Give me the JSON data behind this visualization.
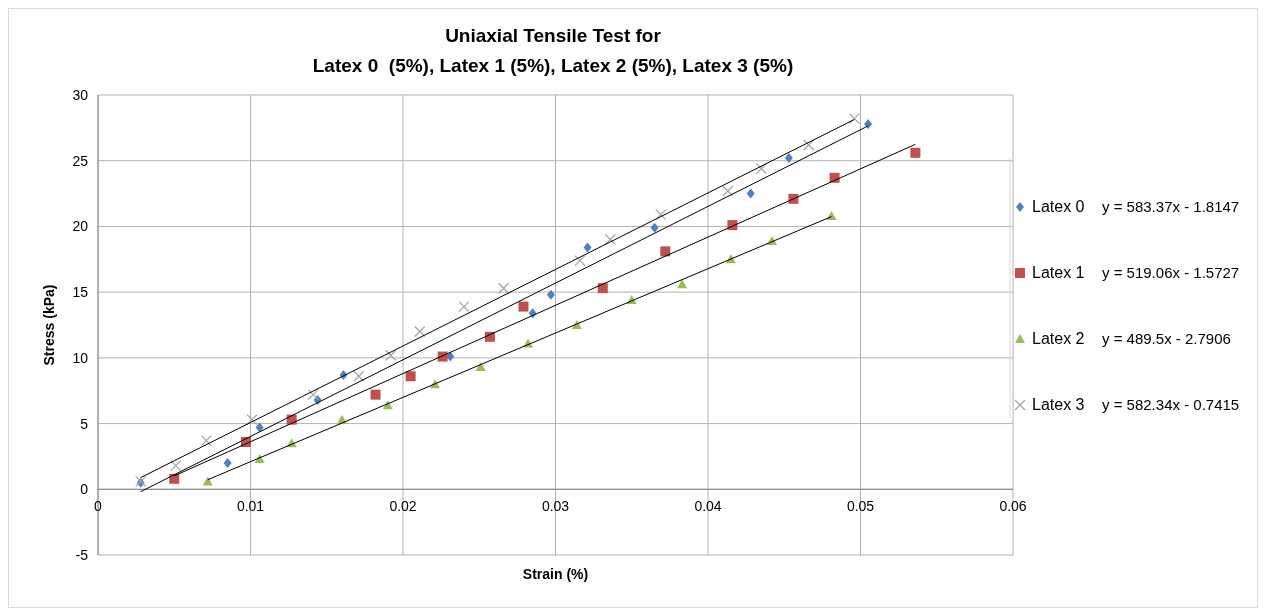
{
  "chart_data": {
    "type": "scatter",
    "title": "Uniaxial Tensile Test for\nLatex 0  (5%), Latex 1 (5%), Latex 2 (5%), Latex 3 (5%)",
    "xlabel": "Strain (%)",
    "ylabel": "Stress (kPa)",
    "xlim": [
      0,
      0.06
    ],
    "xticks": [
      0,
      0.01,
      0.02,
      0.03,
      0.04,
      0.05,
      0.06
    ],
    "ylim": [
      -5,
      30
    ],
    "yticks": [
      -5,
      0,
      5,
      10,
      15,
      20,
      25,
      30
    ],
    "grid": true,
    "legend": "right",
    "annotations": [
      "y = 583.37x - 1.8147",
      "y = 519.06x - 1.5727",
      "y = 489.5x - 2.7906",
      "y = 582.34x - 0.7415"
    ],
    "series": [
      {
        "name": "Latex 0",
        "color": "#4f81bd",
        "marker": "diamond",
        "x": [
          0.0028,
          0.0085,
          0.0106,
          0.0144,
          0.0161,
          0.0231,
          0.0285,
          0.0297,
          0.0321,
          0.0365,
          0.0428,
          0.0453,
          0.0505
        ],
        "values": [
          0.5,
          2.0,
          4.7,
          6.8,
          8.7,
          10.1,
          13.4,
          14.8,
          18.4,
          19.9,
          22.5,
          25.2,
          27.8
        ]
      },
      {
        "name": "Latex 1",
        "color": "#c0504d",
        "marker": "square",
        "x": [
          0.005,
          0.0097,
          0.0127,
          0.0182,
          0.0205,
          0.0226,
          0.0257,
          0.0279,
          0.0331,
          0.0372,
          0.0416,
          0.0456,
          0.0483,
          0.0536
        ],
        "values": [
          0.8,
          3.6,
          5.3,
          7.2,
          8.6,
          10.1,
          11.6,
          13.9,
          15.3,
          18.1,
          20.1,
          22.1,
          23.7,
          25.6
        ]
      },
      {
        "name": "Latex 2",
        "color": "#9bbb59",
        "marker": "triangle",
        "x": [
          0.0072,
          0.0106,
          0.0127,
          0.016,
          0.019,
          0.0221,
          0.0251,
          0.0282,
          0.0314,
          0.035,
          0.0383,
          0.0415,
          0.0442,
          0.0481
        ],
        "values": [
          0.6,
          2.3,
          3.5,
          5.3,
          6.4,
          8.0,
          9.3,
          11.1,
          12.5,
          14.4,
          15.6,
          17.5,
          18.9,
          20.8
        ]
      },
      {
        "name": "Latex 3",
        "color": "#a6a6a6",
        "marker": "cross",
        "x": [
          0.0028,
          0.0051,
          0.0071,
          0.0101,
          0.0141,
          0.0171,
          0.0192,
          0.0211,
          0.024,
          0.0266,
          0.0316,
          0.0336,
          0.0369,
          0.0413,
          0.0435,
          0.0466,
          0.0496
        ],
        "values": [
          0.6,
          1.8,
          3.7,
          5.3,
          7.2,
          8.6,
          10.2,
          12.0,
          13.9,
          15.3,
          17.4,
          19.0,
          20.9,
          22.7,
          24.4,
          26.2,
          28.2
        ]
      },
      {
        "type": "line",
        "color": "#000000",
        "marker": "none",
        "x": [
          0.0028,
          0.0505
        ],
        "values": [
          -0.18,
          27.65
        ]
      },
      {
        "type": "line",
        "color": "#000000",
        "marker": "none",
        "x": [
          0.005,
          0.0536
        ],
        "values": [
          1.02,
          26.25
        ]
      },
      {
        "type": "line",
        "color": "#000000",
        "marker": "none",
        "x": [
          0.0072,
          0.0481
        ],
        "values": [
          0.73,
          20.75
        ]
      },
      {
        "type": "line",
        "color": "#000000",
        "marker": "none",
        "x": [
          0.0028,
          0.0496
        ],
        "values": [
          0.89,
          28.14
        ]
      }
    ]
  }
}
